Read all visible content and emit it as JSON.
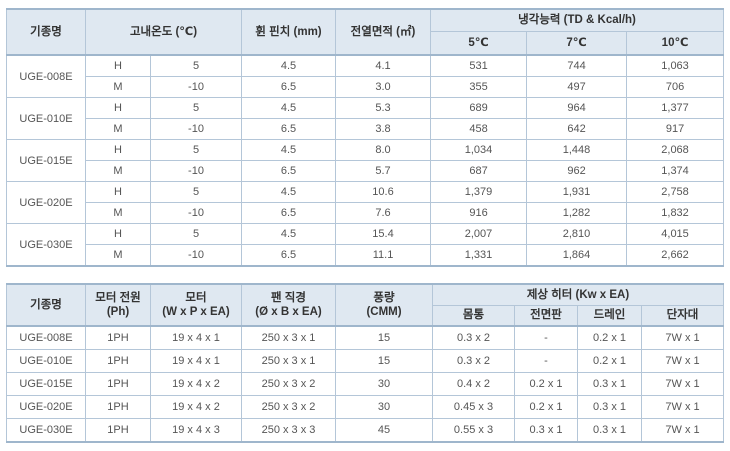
{
  "table1": {
    "headers": {
      "model": [
        "기종명"
      ],
      "temp": [
        "고내온도 (℃)"
      ],
      "fin": [
        "휜 핀치 (mm)"
      ],
      "area": [
        "전열면적 (㎡)"
      ],
      "capacity": [
        "냉각능력 (TD & Kcal/h)"
      ],
      "capacity_cols": [
        "5℃",
        "7℃",
        "10℃"
      ]
    },
    "rows": [
      {
        "model": "UGE-008E",
        "lines": [
          [
            "H",
            "5",
            "4.5",
            "4.1",
            "531",
            "744",
            "1,063"
          ],
          [
            "M",
            "-10",
            "6.5",
            "3.0",
            "355",
            "497",
            "706"
          ]
        ]
      },
      {
        "model": "UGE-010E",
        "lines": [
          [
            "H",
            "5",
            "4.5",
            "5.3",
            "689",
            "964",
            "1,377"
          ],
          [
            "M",
            "-10",
            "6.5",
            "3.8",
            "458",
            "642",
            "917"
          ]
        ]
      },
      {
        "model": "UGE-015E",
        "lines": [
          [
            "H",
            "5",
            "4.5",
            "8.0",
            "1,034",
            "1,448",
            "2,068"
          ],
          [
            "M",
            "-10",
            "6.5",
            "5.7",
            "687",
            "962",
            "1,374"
          ]
        ]
      },
      {
        "model": "UGE-020E",
        "lines": [
          [
            "H",
            "5",
            "4.5",
            "10.6",
            "1,379",
            "1,931",
            "2,758"
          ],
          [
            "M",
            "-10",
            "6.5",
            "7.6",
            "916",
            "1,282",
            "1,832"
          ]
        ]
      },
      {
        "model": "UGE-030E",
        "lines": [
          [
            "H",
            "5",
            "4.5",
            "15.4",
            "2,007",
            "2,810",
            "4,015"
          ],
          [
            "M",
            "-10",
            "6.5",
            "11.1",
            "1,331",
            "1,864",
            "2,662"
          ]
        ]
      }
    ]
  },
  "table2": {
    "headers": {
      "model": [
        "기종명"
      ],
      "power": [
        "모터 전원",
        "(Ph)"
      ],
      "motor": [
        "모터",
        "(W x P x EA)"
      ],
      "fan": [
        "팬 직경",
        "(Ø x B x EA)"
      ],
      "airflow": [
        "풍량",
        "(CMM)"
      ],
      "heater": [
        "제상 히터 (Kw x EA)"
      ],
      "heater_cols": [
        "몸통",
        "전면판",
        "드레인",
        "단자대"
      ]
    },
    "rows": [
      [
        "UGE-008E",
        "1PH",
        "19 x 4 x 1",
        "250 x 3 x 1",
        "15",
        "0.3 x 2",
        "-",
        "0.2 x 1",
        "7W x 1"
      ],
      [
        "UGE-010E",
        "1PH",
        "19 x 4 x 1",
        "250 x 3 x 1",
        "15",
        "0.3 x 2",
        "-",
        "0.2 x 1",
        "7W x 1"
      ],
      [
        "UGE-015E",
        "1PH",
        "19 x 4 x 2",
        "250 x 3 x 2",
        "30",
        "0.4 x 2",
        "0.2 x 1",
        "0.3 x 1",
        "7W x 1"
      ],
      [
        "UGE-020E",
        "1PH",
        "19 x 4 x 2",
        "250 x 3 x 2",
        "30",
        "0.45 x 3",
        "0.2 x 1",
        "0.3 x 1",
        "7W x 1"
      ],
      [
        "UGE-030E",
        "1PH",
        "19 x 4 x 3",
        "250 x 3 x 3",
        "45",
        "0.55 x 3",
        "0.3 x 1",
        "0.3 x 1",
        "7W x 1"
      ]
    ]
  }
}
